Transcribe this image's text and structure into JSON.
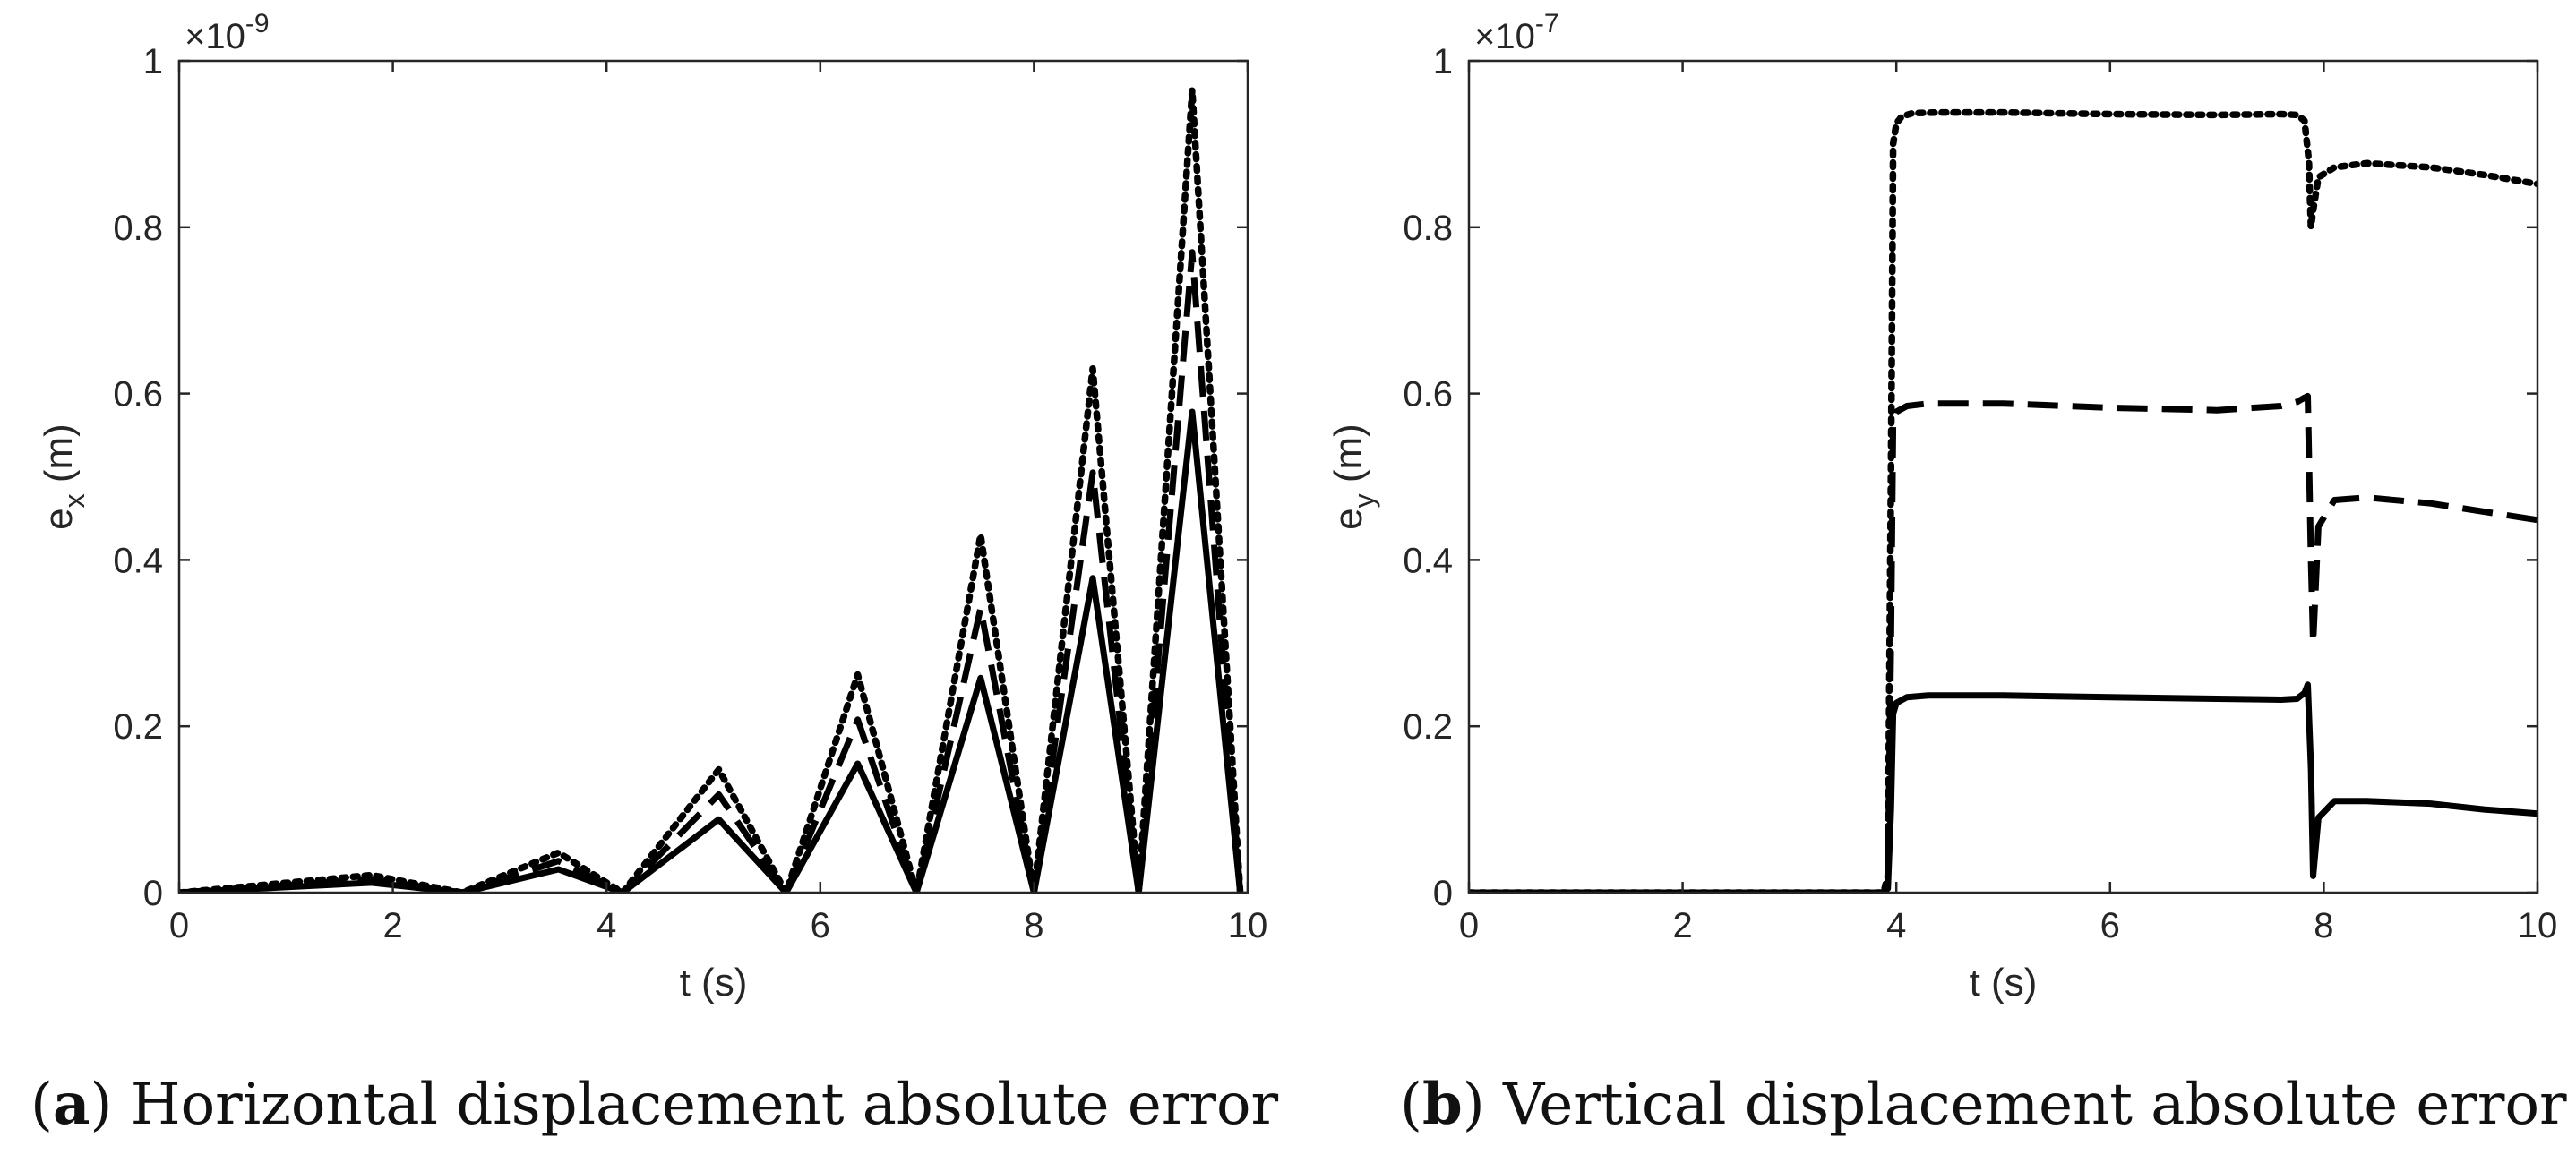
{
  "chart_data": [
    {
      "type": "line",
      "panel_letter": "a",
      "caption": "Horizontal displacement absolute error",
      "xlabel": "t (s)",
      "ylabel_base": "e",
      "ylabel_sub": "x",
      "ylabel_unit": " (m)",
      "exponent_prefix": "×10",
      "exponent": "-9",
      "xlim": [
        0,
        10
      ],
      "ylim": [
        0,
        1
      ],
      "xticks": [
        0,
        2,
        4,
        6,
        8,
        10
      ],
      "yticks": [
        0,
        0.2,
        0.4,
        0.6,
        0.8,
        1
      ],
      "xtick_labels": [
        "0",
        "2",
        "4",
        "6",
        "8",
        "10"
      ],
      "ytick_labels": [
        "0",
        "0.2",
        "0.4",
        "0.6",
        "0.8",
        "1"
      ],
      "grid": false,
      "legend": "none",
      "series": [
        {
          "style": "solid",
          "color": "#000000",
          "x": [
            0.0,
            1.8,
            2.65,
            3.55,
            4.15,
            5.05,
            5.68,
            6.35,
            6.9,
            7.5,
            8.0,
            8.55,
            8.98,
            9.48,
            9.93
          ],
          "y": [
            0,
            0.012,
            0,
            0.028,
            0,
            0.088,
            0,
            0.155,
            0,
            0.258,
            0,
            0.378,
            0,
            0.578,
            0
          ]
        },
        {
          "style": "dashed",
          "color": "#000000",
          "x": [
            0.0,
            1.8,
            2.65,
            3.55,
            4.15,
            5.05,
            5.68,
            6.35,
            6.9,
            7.5,
            8.0,
            8.55,
            8.98,
            9.48,
            9.93
          ],
          "y": [
            0,
            0.016,
            0,
            0.038,
            0,
            0.118,
            0,
            0.208,
            0,
            0.342,
            0,
            0.505,
            0,
            0.77,
            0
          ]
        },
        {
          "style": "dotted",
          "color": "#000000",
          "x": [
            0.0,
            1.8,
            2.65,
            3.55,
            4.15,
            5.05,
            5.68,
            6.35,
            6.9,
            7.5,
            8.0,
            8.55,
            8.98,
            9.48,
            9.93
          ],
          "y": [
            0,
            0.021,
            0,
            0.048,
            0,
            0.148,
            0,
            0.262,
            0,
            0.43,
            0,
            0.63,
            0,
            0.965,
            0
          ]
        }
      ]
    },
    {
      "type": "line",
      "panel_letter": "b",
      "caption": "Vertical displacement absolute error",
      "xlabel": "t (s)",
      "ylabel_base": "e",
      "ylabel_sub": "y",
      "ylabel_unit": " (m)",
      "exponent_prefix": "×10",
      "exponent": "-7",
      "xlim": [
        0,
        10
      ],
      "ylim": [
        0,
        1
      ],
      "xticks": [
        0,
        2,
        4,
        6,
        8,
        10
      ],
      "yticks": [
        0,
        0.2,
        0.4,
        0.6,
        0.8,
        1
      ],
      "xtick_labels": [
        "0",
        "2",
        "4",
        "6",
        "8",
        "10"
      ],
      "ytick_labels": [
        "0",
        "0.2",
        "0.4",
        "0.6",
        "0.8",
        "1"
      ],
      "grid": false,
      "legend": "none",
      "series": [
        {
          "style": "solid",
          "color": "#000000",
          "x": [
            0,
            3.88,
            3.92,
            3.95,
            3.97,
            4.0,
            4.1,
            4.3,
            5,
            6,
            7,
            7.6,
            7.75,
            7.82,
            7.85,
            7.88,
            7.9,
            7.95,
            8.1,
            8.4,
            9,
            9.5,
            10
          ],
          "y": [
            0,
            0,
            0.005,
            0.1,
            0.215,
            0.228,
            0.235,
            0.237,
            0.237,
            0.235,
            0.233,
            0.232,
            0.233,
            0.24,
            0.25,
            0.15,
            0.02,
            0.09,
            0.11,
            0.11,
            0.107,
            0.1,
            0.095
          ]
        },
        {
          "style": "dashed",
          "color": "#000000",
          "x": [
            0,
            3.88,
            3.92,
            3.95,
            3.97,
            4.0,
            4.1,
            4.3,
            5,
            6,
            7,
            7.6,
            7.75,
            7.82,
            7.85,
            7.88,
            7.9,
            7.95,
            8.1,
            8.4,
            9,
            9.5,
            10
          ],
          "y": [
            0,
            0,
            0.01,
            0.3,
            0.565,
            0.578,
            0.585,
            0.588,
            0.588,
            0.583,
            0.58,
            0.585,
            0.59,
            0.595,
            0.597,
            0.4,
            0.3,
            0.44,
            0.472,
            0.475,
            0.468,
            0.458,
            0.448
          ]
        },
        {
          "style": "dotted",
          "color": "#000000",
          "x": [
            0,
            3.88,
            3.92,
            3.95,
            3.97,
            4.0,
            4.05,
            4.15,
            4.4,
            5,
            6,
            7,
            7.6,
            7.75,
            7.82,
            7.86,
            7.88,
            7.9,
            7.95,
            8.1,
            8.4,
            9,
            9.5,
            10
          ],
          "y": [
            0,
            0,
            0.02,
            0.5,
            0.9,
            0.925,
            0.933,
            0.937,
            0.938,
            0.938,
            0.936,
            0.935,
            0.936,
            0.935,
            0.928,
            0.88,
            0.8,
            0.82,
            0.86,
            0.872,
            0.877,
            0.872,
            0.863,
            0.852
          ]
        }
      ]
    }
  ]
}
